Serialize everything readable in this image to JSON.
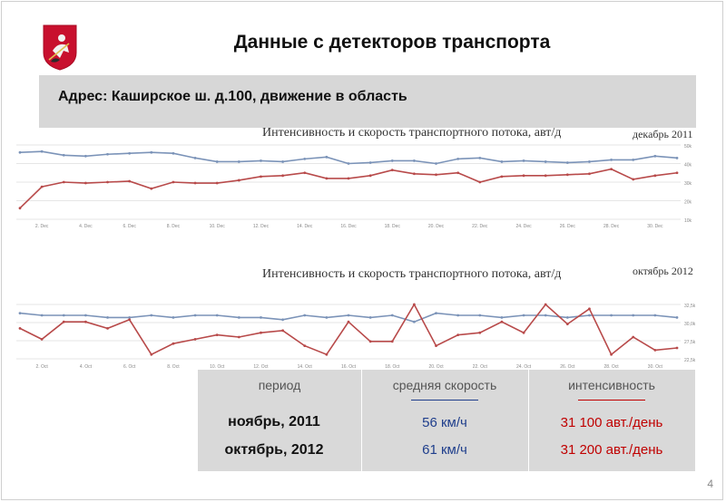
{
  "header": {
    "title": "Данные с детекторов транспорта",
    "emblem_icon": "moscow-coat-of-arms"
  },
  "address": "Адрес: Каширское ш. д.100, движение в область",
  "charts": [
    {
      "title": "Интенсивность и скорость транспортного потока, авт/д",
      "month": "декабрь 2011"
    },
    {
      "title": "Интенсивность и скорость транспортного потока, авт/д",
      "month": "октябрь 2012"
    }
  ],
  "chart_data": [
    {
      "type": "line",
      "title": "Интенсивность и скорость транспортного потока, авт/д",
      "subtitle": "декабрь 2011",
      "x": [
        "1",
        "2",
        "3",
        "4",
        "5",
        "6",
        "7",
        "8",
        "9",
        "10",
        "11",
        "12",
        "13",
        "14",
        "15",
        "16",
        "17",
        "18",
        "19",
        "20",
        "21",
        "22",
        "23",
        "24",
        "25",
        "26",
        "27",
        "28",
        "29",
        "30",
        "31"
      ],
      "x_ticks": [
        "2. Dec",
        "4. Dec",
        "6. Dec",
        "8. Dec",
        "10. Dec",
        "12. Dec",
        "14. Dec",
        "16. Dec",
        "18. Dec",
        "20. Dec",
        "22. Dec",
        "24. Dec",
        "26. Dec",
        "28. Dec",
        "30. Dec"
      ],
      "y_ticks": [
        "10k",
        "20k",
        "30k",
        "40k",
        "50k"
      ],
      "ylim": [
        10000,
        50000
      ],
      "grid": true,
      "series": [
        {
          "color": "#7b93b8",
          "values": [
            46000,
            46500,
            44500,
            44000,
            45000,
            45500,
            46000,
            45500,
            43000,
            41000,
            41000,
            41500,
            41000,
            42500,
            43500,
            40000,
            40500,
            41500,
            41500,
            40000,
            42500,
            43000,
            41000,
            41500,
            41000,
            40500,
            41000,
            42000,
            42000,
            44000,
            43000
          ]
        },
        {
          "color": "#b84a4a",
          "values": [
            16000,
            27500,
            30000,
            29500,
            30000,
            30500,
            26500,
            30000,
            29500,
            29500,
            31000,
            33000,
            33500,
            35000,
            32000,
            32000,
            33500,
            36500,
            34500,
            34000,
            35000,
            30000,
            33000,
            33500,
            33500,
            34000,
            34500,
            37000,
            31500,
            33500,
            35000
          ]
        }
      ]
    },
    {
      "type": "line",
      "title": "Интенсивность и скорость транспортного потока, авт/д",
      "subtitle": "октябрь 2012",
      "x": [
        "1",
        "2",
        "3",
        "4",
        "5",
        "6",
        "7",
        "8",
        "9",
        "10",
        "11",
        "12",
        "13",
        "14",
        "15",
        "16",
        "17",
        "18",
        "19",
        "20",
        "21",
        "22",
        "23",
        "24",
        "25",
        "26",
        "27",
        "28",
        "29",
        "30",
        "31"
      ],
      "x_ticks": [
        "2. Oct",
        "4. Oct",
        "6. Oct",
        "8. Oct",
        "10. Oct",
        "12. Oct",
        "14. Oct",
        "16. Oct",
        "18. Oct",
        "20. Oct",
        "22. Oct",
        "24. Oct",
        "26. Oct",
        "28. Oct",
        "30. Oct"
      ],
      "y_ticks": [
        "22,5k",
        "27,5k",
        "30,0k",
        "32,5k"
      ],
      "ylim": [
        22500,
        35000
      ],
      "grid": true,
      "series": [
        {
          "color": "#7b93b8",
          "values": [
            33000,
            32500,
            32500,
            32500,
            32000,
            32000,
            32500,
            32000,
            32500,
            32500,
            32000,
            32000,
            31500,
            32500,
            32000,
            32500,
            32000,
            32500,
            31000,
            33000,
            32500,
            32500,
            32000,
            32500,
            32500,
            32000,
            32500,
            32500,
            32500,
            32500,
            32000
          ]
        },
        {
          "color": "#b84a4a",
          "values": [
            29500,
            27000,
            31000,
            31000,
            29500,
            31500,
            23500,
            26000,
            27000,
            28000,
            27500,
            28500,
            29000,
            25500,
            23500,
            31000,
            26500,
            26500,
            35000,
            25500,
            28000,
            28500,
            31000,
            28500,
            35000,
            30500,
            34000,
            23500,
            27500,
            24500,
            25000
          ]
        }
      ]
    }
  ],
  "table": {
    "headers": [
      "период",
      "средняя скорость",
      "интенсивность"
    ],
    "rows": [
      {
        "period": "ноябрь, 2011",
        "speed": "56 км/ч",
        "intensity": "31 100 авт./день"
      },
      {
        "period": "октябрь, 2012",
        "speed": "61 км/ч",
        "intensity": "31 200 авт./день"
      }
    ],
    "colors": {
      "speed": "#1f3e8c",
      "intensity": "#c00000",
      "band": "#d9d9d9"
    }
  },
  "page_number": "4"
}
